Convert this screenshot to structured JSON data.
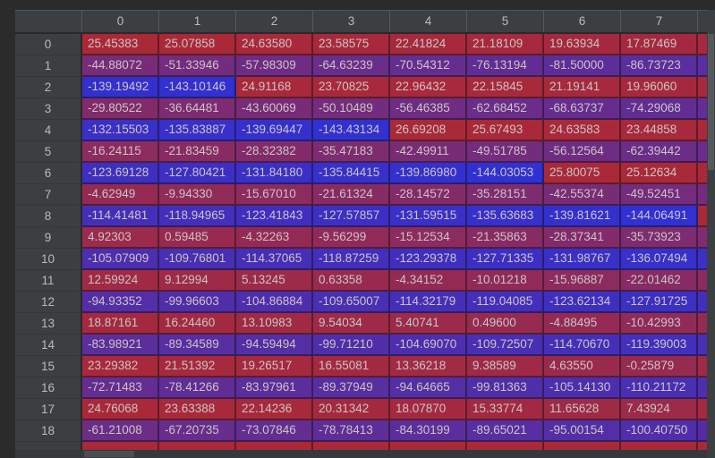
{
  "table": {
    "corner_label": "",
    "columns": [
      "0",
      "1",
      "2",
      "3",
      "4",
      "5",
      "6",
      "7"
    ],
    "rows": [
      {
        "index": "0",
        "values": [
          "25.45383",
          "25.07858",
          "24.63580",
          "23.58575",
          "22.41824",
          "21.18109",
          "19.63934",
          "17.87469"
        ]
      },
      {
        "index": "1",
        "values": [
          "-44.88072",
          "-51.33946",
          "-57.98309",
          "-64.63239",
          "-70.54312",
          "-76.13194",
          "-81.50000",
          "-86.73723"
        ]
      },
      {
        "index": "2",
        "values": [
          "-139.19492",
          "-143.10146",
          "24.91168",
          "23.70825",
          "22.96432",
          "22.15845",
          "21.19141",
          "19.96060"
        ]
      },
      {
        "index": "3",
        "values": [
          "-29.80522",
          "-36.64481",
          "-43.60069",
          "-50.10489",
          "-56.46385",
          "-62.68452",
          "-68.63737",
          "-74.29068"
        ]
      },
      {
        "index": "4",
        "values": [
          "-132.15503",
          "-135.83887",
          "-139.69447",
          "-143.43134",
          "26.69208",
          "25.67493",
          "24.63583",
          "23.44858"
        ]
      },
      {
        "index": "5",
        "values": [
          "-16.24115",
          "-21.83459",
          "-28.32382",
          "-35.47183",
          "-42.49911",
          "-49.51785",
          "-56.12564",
          "-62.39442"
        ]
      },
      {
        "index": "6",
        "values": [
          "-123.69128",
          "-127.80421",
          "-131.84180",
          "-135.84415",
          "-139.86980",
          "-144.03053",
          "25.80075",
          "25.12634"
        ]
      },
      {
        "index": "7",
        "values": [
          "-4.62949",
          "-9.94330",
          "-15.67010",
          "-21.61324",
          "-28.14572",
          "-35.28151",
          "-42.55374",
          "-49.52451"
        ]
      },
      {
        "index": "8",
        "values": [
          "-114.41481",
          "-118.94965",
          "-123.41843",
          "-127.57857",
          "-131.59515",
          "-135.63683",
          "-139.81621",
          "-144.06491"
        ]
      },
      {
        "index": "9",
        "values": [
          "4.92303",
          "0.59485",
          "-4.32263",
          "-9.56299",
          "-15.12534",
          "-21.35863",
          "-28.37341",
          "-35.73923"
        ]
      },
      {
        "index": "10",
        "values": [
          "-105.07909",
          "-109.76801",
          "-114.37065",
          "-118.87259",
          "-123.29378",
          "-127.71335",
          "-131.98767",
          "-136.07494"
        ]
      },
      {
        "index": "11",
        "values": [
          "12.59924",
          "9.12994",
          "5.13245",
          "0.63358",
          "-4.34152",
          "-10.01218",
          "-15.96887",
          "-22.01462"
        ]
      },
      {
        "index": "12",
        "values": [
          "-94.93352",
          "-99.96603",
          "-104.86884",
          "-109.65007",
          "-114.32179",
          "-119.04085",
          "-123.62134",
          "-127.91725"
        ]
      },
      {
        "index": "13",
        "values": [
          "18.87161",
          "16.24460",
          "13.10983",
          "9.54034",
          "5.40741",
          "0.49600",
          "-4.88495",
          "-10.42993"
        ]
      },
      {
        "index": "14",
        "values": [
          "-83.98921",
          "-89.34589",
          "-94.59494",
          "-99.71210",
          "-104.69070",
          "-109.72507",
          "-114.70670",
          "-119.39003"
        ]
      },
      {
        "index": "15",
        "values": [
          "23.29382",
          "21.51392",
          "19.26517",
          "16.55081",
          "13.36218",
          "9.38589",
          "4.63550",
          "-0.25879"
        ]
      },
      {
        "index": "16",
        "values": [
          "-72.71483",
          "-78.41266",
          "-83.97961",
          "-89.37949",
          "-94.64665",
          "-99.81363",
          "-105.14130",
          "-110.21172"
        ]
      },
      {
        "index": "17",
        "values": [
          "24.76068",
          "23.63388",
          "22.14236",
          "20.31342",
          "18.07870",
          "15.33774",
          "11.65628",
          "7.43924"
        ]
      },
      {
        "index": "18",
        "values": [
          "-61.21008",
          "-67.20735",
          "-73.07846",
          "-78.78413",
          "-84.30199",
          "-89.65021",
          "-95.00154",
          "-100.40750"
        ]
      }
    ],
    "partial_col8_colors": [
      "#a6293d",
      "#582da6",
      "#a8293b",
      "#632d97",
      "#a92939",
      "#6b2c8d",
      "#aa2938",
      "#752c80",
      "#aa2938",
      "#7f2c73",
      "#3c30c6",
      "#8b2b61",
      "#4230bd",
      "#952a52",
      "#482fb5",
      "#9e2a48",
      "#4f2ead",
      "#a52941",
      "#562aa5"
    ],
    "partial_row19_color": "#aa2938"
  },
  "heatmap": {
    "vmax": 26.69208,
    "vmin": -144.06491,
    "color_high": "#aa2938",
    "color_low": "#3130d2",
    "cell_text_color": "#cbc4c4"
  },
  "theme": {
    "background": "#2b2b2b",
    "header_background": "#3c3f41",
    "header_text": "#b7babc",
    "scrollbar_thumb": "#55595b"
  }
}
